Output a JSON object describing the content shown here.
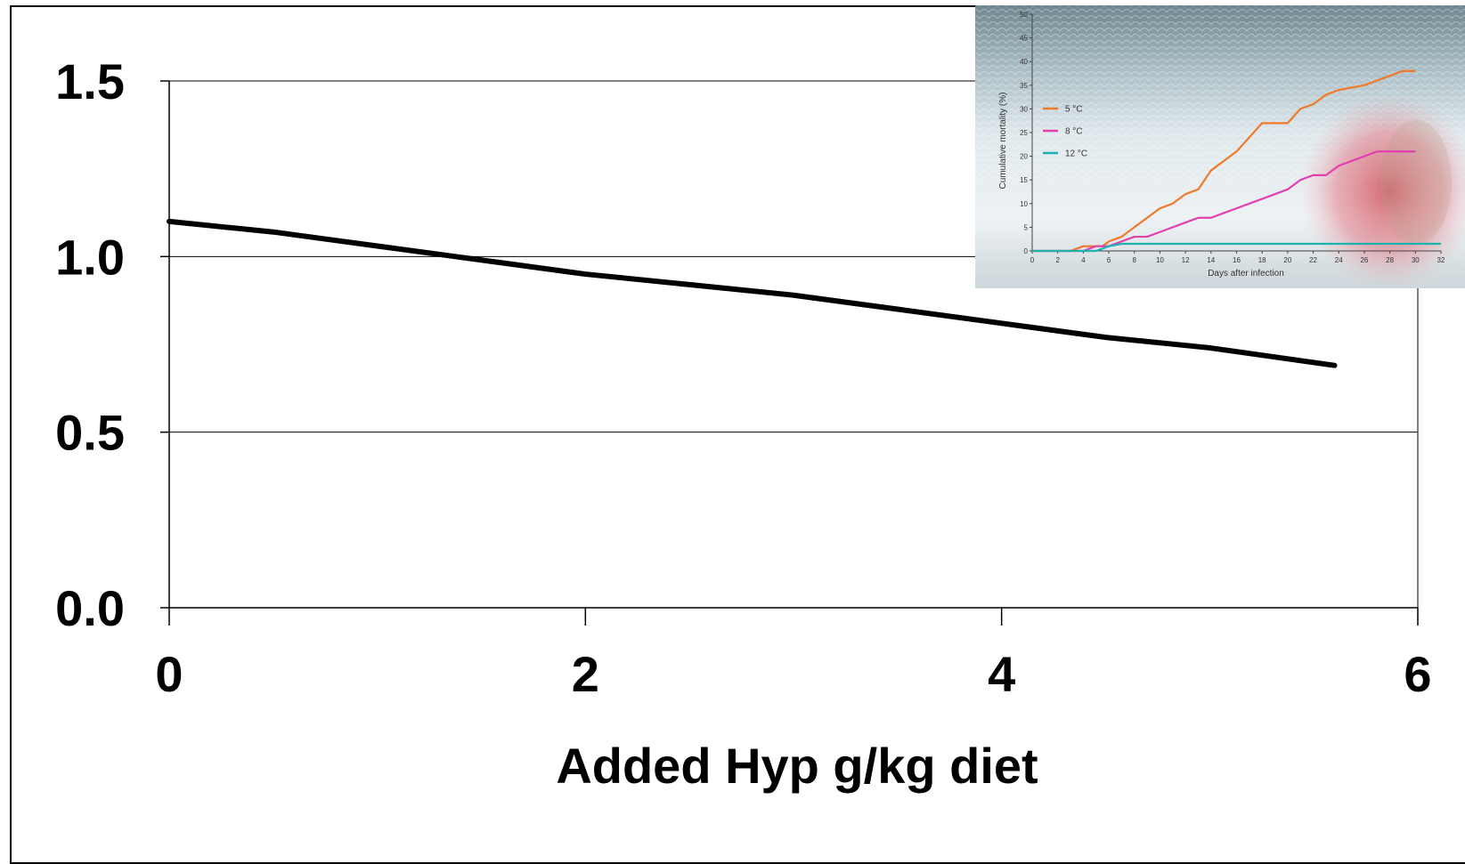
{
  "chart_data": [
    {
      "type": "line",
      "title": "",
      "xlabel": "Added Hyp g/kg diet",
      "ylabel": "",
      "xlim": [
        0,
        6
      ],
      "ylim": [
        0,
        1.5
      ],
      "xticks": [
        0,
        2,
        4,
        6
      ],
      "xtick_labels": [
        "0",
        "2",
        "4",
        "6"
      ],
      "yticks": [
        0,
        0.5,
        1.0,
        1.5
      ],
      "ytick_labels": [
        "0.0",
        "0.5",
        "1.0",
        "1.5"
      ],
      "grid": "horizontal",
      "series": [
        {
          "color": "#000000",
          "x": [
            0,
            0.5,
            1,
            1.5,
            2,
            2.5,
            3,
            3.5,
            4,
            4.5,
            5,
            5.6
          ],
          "y": [
            1.1,
            1.07,
            1.03,
            0.99,
            0.95,
            0.92,
            0.89,
            0.85,
            0.81,
            0.77,
            0.74,
            0.69
          ]
        }
      ]
    },
    {
      "type": "line",
      "title": "",
      "xlabel": "Days after infection",
      "ylabel": "Cumulative mortality (%)",
      "xlim": [
        0,
        32
      ],
      "ylim": [
        0,
        50
      ],
      "xticks": [
        0,
        2,
        4,
        6,
        8,
        10,
        12,
        14,
        16,
        18,
        20,
        22,
        24,
        26,
        28,
        30,
        32
      ],
      "yticks": [
        0,
        5,
        10,
        15,
        20,
        25,
        30,
        35,
        40,
        45,
        50
      ],
      "legend": "upper-left",
      "series": [
        {
          "name": "5 °C",
          "color": "#f07a2a",
          "x": [
            0,
            3,
            4,
            5,
            5.5,
            6,
            7,
            8,
            9,
            10,
            11,
            12,
            13,
            13.5,
            14,
            15,
            16,
            17,
            18,
            19,
            20,
            21,
            22,
            23,
            24,
            25,
            26,
            27,
            28,
            29,
            30
          ],
          "y": [
            0,
            0,
            1,
            1,
            1,
            2,
            3,
            5,
            7,
            9,
            10,
            12,
            13,
            15,
            17,
            19,
            21,
            24,
            27,
            27,
            27,
            30,
            31,
            33,
            34,
            34.5,
            35,
            36,
            37,
            38,
            38
          ]
        },
        {
          "name": "8 °C",
          "color": "#e040b0",
          "x": [
            0,
            4,
            5,
            6,
            7,
            8,
            9,
            10,
            11,
            12,
            13,
            14,
            15,
            16,
            17,
            18,
            19,
            20,
            21,
            22,
            23,
            24,
            25,
            26,
            27,
            28,
            29,
            30
          ],
          "y": [
            0,
            0,
            1,
            1,
            2,
            3,
            3,
            4,
            5,
            6,
            7,
            7,
            8,
            9,
            10,
            11,
            12,
            13,
            15,
            16,
            16,
            18,
            19,
            20,
            21,
            21,
            21,
            21
          ]
        },
        {
          "name": "12 °C",
          "color": "#1fb0b0",
          "x": [
            0,
            5,
            6,
            7,
            8,
            10,
            12,
            14,
            16,
            18,
            20,
            22,
            24,
            26,
            28,
            30,
            32
          ],
          "y": [
            0,
            0,
            1,
            1.5,
            1.5,
            1.5,
            1.5,
            1.5,
            1.5,
            1.5,
            1.5,
            1.5,
            1.5,
            1.5,
            1.5,
            1.5,
            1.5
          ]
        }
      ]
    }
  ]
}
